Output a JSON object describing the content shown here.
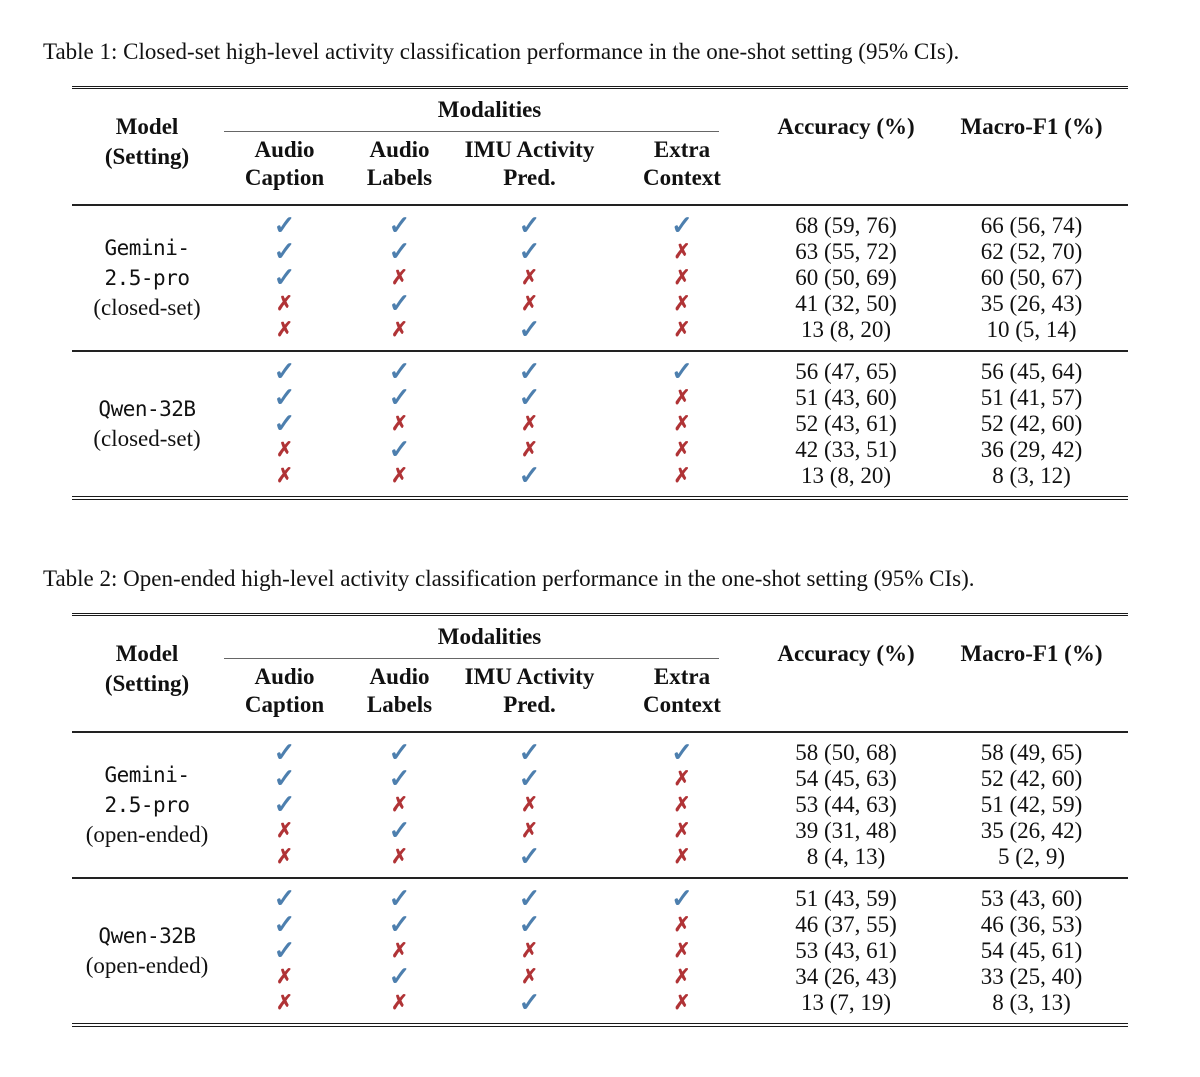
{
  "page": {
    "background": "#ffffff"
  },
  "colors": {
    "check": "#4d7fae",
    "cross": "#b03336",
    "rule": "#1a1a1a",
    "text": "#111111"
  },
  "icons": {
    "check_glyph": "✓",
    "cross_glyph": "✗"
  },
  "header": {
    "model": "Model",
    "setting": "(Setting)",
    "modalities": "Modalities",
    "subcolumns": [
      {
        "line1": "Audio",
        "line2": "Caption"
      },
      {
        "line1": "Audio",
        "line2": "Labels"
      },
      {
        "line1": "IMU Activity",
        "line2": "Pred."
      },
      {
        "line1": "Extra",
        "line2": "Context"
      }
    ],
    "accuracy": "Accuracy (%)",
    "macro_f1": "Macro-F1 (%)"
  },
  "tables": [
    {
      "caption": "Table 1: Closed-set high-level activity classification performance in the one-shot setting (95% CIs).",
      "groups": [
        {
          "model_lines": [
            "Gemini-",
            "2.5-pro"
          ],
          "setting": "(closed-set)",
          "rows": [
            {
              "modalities": [
                true,
                true,
                true,
                true
              ],
              "accuracy": "68 (59, 76)",
              "macro_f1": "66 (56, 74)"
            },
            {
              "modalities": [
                true,
                true,
                true,
                false
              ],
              "accuracy": "63 (55, 72)",
              "macro_f1": "62 (52, 70)"
            },
            {
              "modalities": [
                true,
                false,
                false,
                false
              ],
              "accuracy": "60 (50, 69)",
              "macro_f1": "60 (50, 67)"
            },
            {
              "modalities": [
                false,
                true,
                false,
                false
              ],
              "accuracy": "41 (32, 50)",
              "macro_f1": "35 (26, 43)"
            },
            {
              "modalities": [
                false,
                false,
                true,
                false
              ],
              "accuracy": "13 (8, 20)",
              "macro_f1": "10 (5, 14)"
            }
          ]
        },
        {
          "model_lines": [
            "Qwen-32B"
          ],
          "setting": "(closed-set)",
          "rows": [
            {
              "modalities": [
                true,
                true,
                true,
                true
              ],
              "accuracy": "56 (47, 65)",
              "macro_f1": "56 (45, 64)"
            },
            {
              "modalities": [
                true,
                true,
                true,
                false
              ],
              "accuracy": "51 (43, 60)",
              "macro_f1": "51 (41, 57)"
            },
            {
              "modalities": [
                true,
                false,
                false,
                false
              ],
              "accuracy": "52 (43, 61)",
              "macro_f1": "52 (42, 60)"
            },
            {
              "modalities": [
                false,
                true,
                false,
                false
              ],
              "accuracy": "42 (33, 51)",
              "macro_f1": "36 (29, 42)"
            },
            {
              "modalities": [
                false,
                false,
                true,
                false
              ],
              "accuracy": "13 (8, 20)",
              "macro_f1": "8 (3, 12)"
            }
          ]
        }
      ]
    },
    {
      "caption": "Table 2: Open-ended high-level activity classification performance in the one-shot setting (95% CIs).",
      "groups": [
        {
          "model_lines": [
            "Gemini-",
            "2.5-pro"
          ],
          "setting": "(open-ended)",
          "rows": [
            {
              "modalities": [
                true,
                true,
                true,
                true
              ],
              "accuracy": "58 (50, 68)",
              "macro_f1": "58 (49, 65)"
            },
            {
              "modalities": [
                true,
                true,
                true,
                false
              ],
              "accuracy": "54 (45, 63)",
              "macro_f1": "52 (42, 60)"
            },
            {
              "modalities": [
                true,
                false,
                false,
                false
              ],
              "accuracy": "53 (44, 63)",
              "macro_f1": "51 (42, 59)"
            },
            {
              "modalities": [
                false,
                true,
                false,
                false
              ],
              "accuracy": "39 (31, 48)",
              "macro_f1": "35 (26, 42)"
            },
            {
              "modalities": [
                false,
                false,
                true,
                false
              ],
              "accuracy": "8 (4, 13)",
              "macro_f1": "5 (2, 9)"
            }
          ]
        },
        {
          "model_lines": [
            "Qwen-32B"
          ],
          "setting": "(open-ended)",
          "rows": [
            {
              "modalities": [
                true,
                true,
                true,
                true
              ],
              "accuracy": "51 (43, 59)",
              "macro_f1": "53 (43, 60)"
            },
            {
              "modalities": [
                true,
                true,
                true,
                false
              ],
              "accuracy": "46 (37, 55)",
              "macro_f1": "46 (36, 53)"
            },
            {
              "modalities": [
                true,
                false,
                false,
                false
              ],
              "accuracy": "53 (43, 61)",
              "macro_f1": "54 (45, 61)"
            },
            {
              "modalities": [
                false,
                true,
                false,
                false
              ],
              "accuracy": "34 (26, 43)",
              "macro_f1": "33 (25, 40)"
            },
            {
              "modalities": [
                false,
                false,
                true,
                false
              ],
              "accuracy": "13 (7, 19)",
              "macro_f1": "8 (3, 13)"
            }
          ]
        }
      ]
    }
  ]
}
